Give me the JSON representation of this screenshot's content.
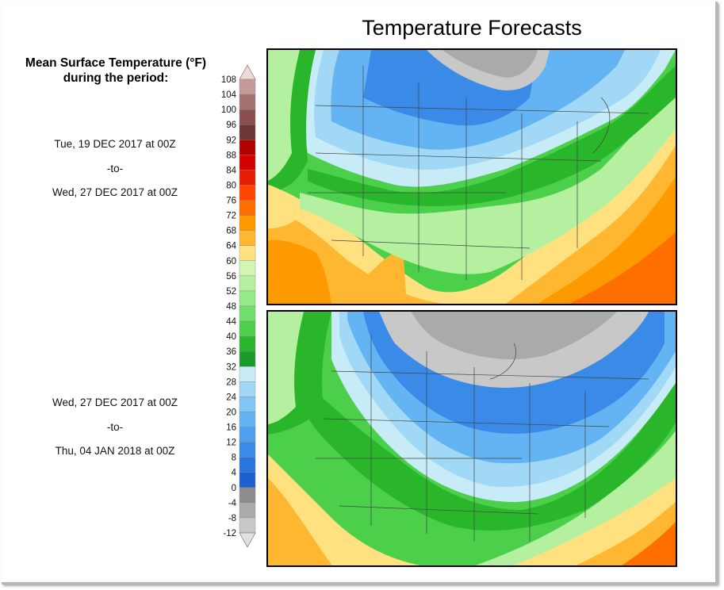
{
  "title": "Temperature Forecasts",
  "legend": {
    "title_line1": "Mean Surface Temperature (°F)",
    "title_line2": "during the period:",
    "levels": [
      108,
      104,
      100,
      96,
      92,
      88,
      84,
      80,
      76,
      72,
      68,
      64,
      60,
      56,
      52,
      48,
      44,
      40,
      36,
      32,
      28,
      24,
      20,
      16,
      12,
      8,
      4,
      0,
      -4,
      -8,
      -12
    ],
    "colors": [
      "#f2d9d9",
      "#c69a9a",
      "#a57272",
      "#8a5050",
      "#6d3636",
      "#b00000",
      "#d40000",
      "#e81c00",
      "#ff4500",
      "#ff6f00",
      "#ff9900",
      "#ffb732",
      "#ffe27f",
      "#d2f5b4",
      "#b4f0a0",
      "#96ea8c",
      "#72de6e",
      "#4ccf4c",
      "#2ab62a",
      "#1b9a2a",
      "#c8ecf7",
      "#a0d8f5",
      "#82c6f5",
      "#64b4f3",
      "#4ea0ef",
      "#3a8ae8",
      "#2a74e0",
      "#1e5fd0",
      "#8c8c8c",
      "#aaaaaa",
      "#c8c8c8",
      "#e0e0e0"
    ]
  },
  "periods": [
    {
      "start": "Tue, 19 DEC 2017 at 00Z",
      "to": "-to-",
      "end": "Wed, 27 DEC 2017 at 00Z"
    },
    {
      "start": "Wed, 27 DEC 2017 at 00Z",
      "to": "-to-",
      "end": "Thu, 04 JAN 2018 at 00Z"
    }
  ]
}
